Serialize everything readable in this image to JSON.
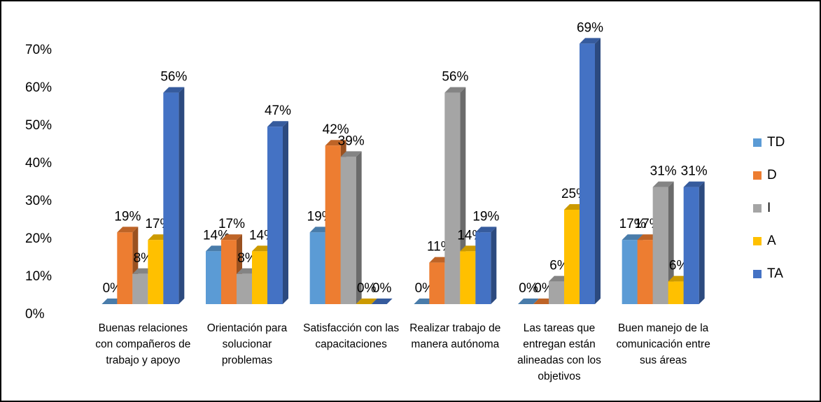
{
  "chart_data": {
    "type": "bar3d",
    "categories": [
      "Buenas relaciones con compañeros de trabajo y apoyo",
      "Orientación para solucionar problemas",
      "Satisfacción con las capacitaciones",
      "Realizar trabajo de manera autónoma",
      "Las tareas que entregan están alineadas con los objetivos",
      "Buen manejo de la comunicación entre sus áreas"
    ],
    "series": [
      {
        "name": "TD",
        "color": "#5b9bd5",
        "values": [
          0,
          14,
          19,
          0,
          0,
          17
        ],
        "value_labels": [
          "0%",
          "14%",
          "19%",
          "0%",
          "0%",
          "17%"
        ]
      },
      {
        "name": "D",
        "color": "#ed7d31",
        "values": [
          19,
          17,
          42,
          11,
          0,
          17
        ],
        "value_labels": [
          "19%",
          "17%",
          "42%",
          "11%",
          "0%",
          "17%"
        ]
      },
      {
        "name": "I",
        "color": "#a5a5a5",
        "values": [
          8,
          8,
          39,
          56,
          6,
          31
        ],
        "value_labels": [
          "8%",
          "8%",
          "39%",
          "56%",
          "6%",
          "31%"
        ]
      },
      {
        "name": "A",
        "color": "#ffc000",
        "values": [
          17,
          14,
          0,
          14,
          25,
          6
        ],
        "value_labels": [
          "17%",
          "14%",
          "0%",
          "14%",
          "25%",
          "6%"
        ]
      },
      {
        "name": "TA",
        "color": "#4472c4",
        "values": [
          56,
          47,
          0,
          19,
          69,
          31
        ],
        "value_labels": [
          "56%",
          "47%",
          "0%",
          "19%",
          "69%",
          "31%"
        ]
      }
    ],
    "ylim": [
      0,
      70
    ],
    "yticks": [
      {
        "value": 0,
        "label": "0%"
      },
      {
        "value": 10,
        "label": "10%"
      },
      {
        "value": 20,
        "label": "20%"
      },
      {
        "value": 30,
        "label": "30%"
      },
      {
        "value": 40,
        "label": "40%"
      },
      {
        "value": 50,
        "label": "50%"
      },
      {
        "value": 60,
        "label": "60%"
      },
      {
        "value": 70,
        "label": "70%"
      }
    ],
    "legend": "right"
  }
}
